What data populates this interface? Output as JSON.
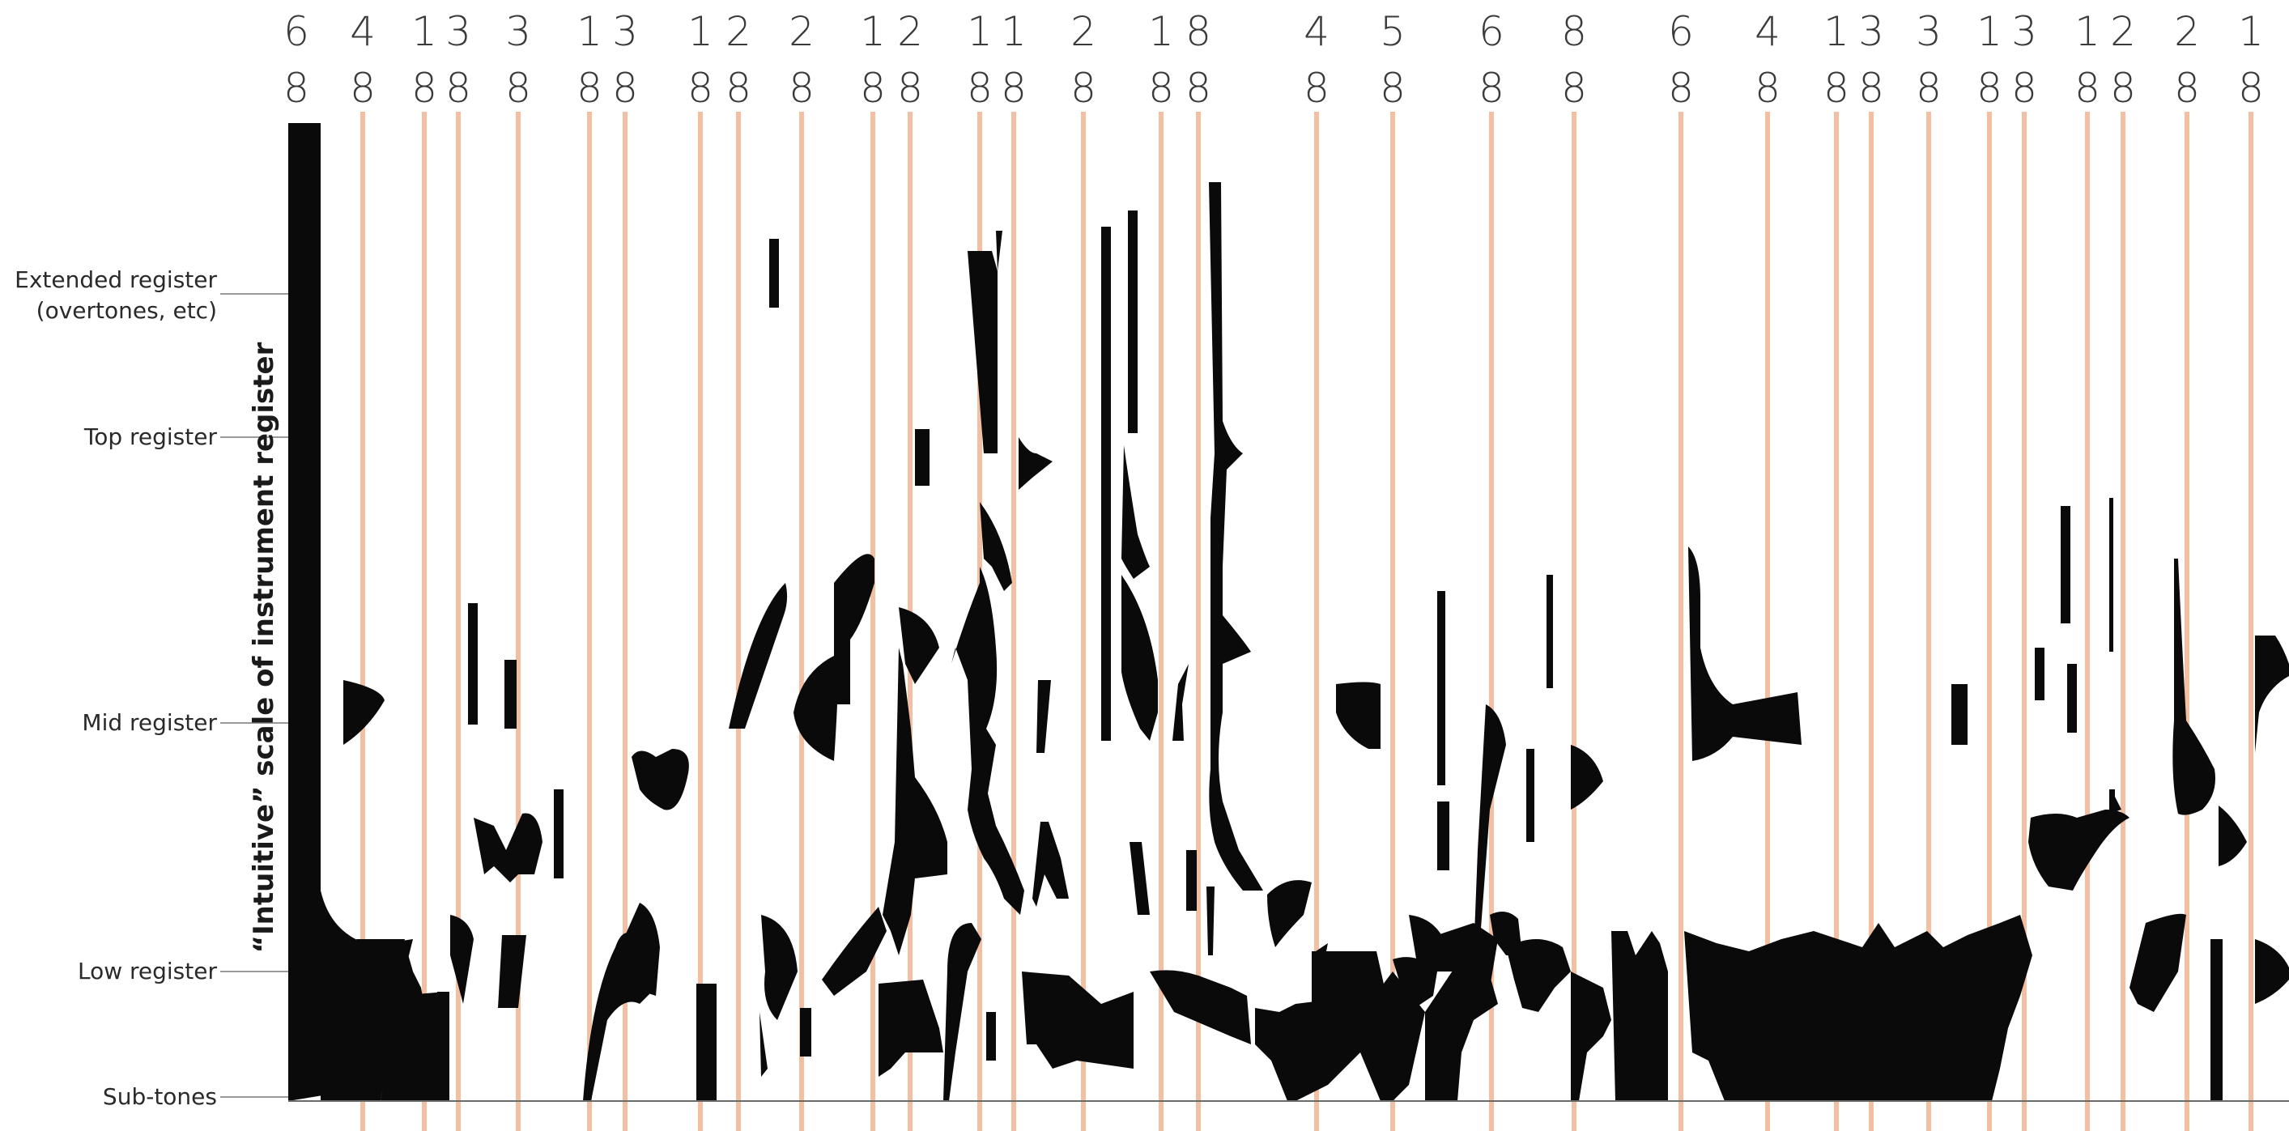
{
  "figure": {
    "axis_title": "“Intuitive” scale of instrument register",
    "registers": [
      {
        "label": "Extended register",
        "sub": "(overtones, etc)",
        "level": 1.0
      },
      {
        "label": "Top register",
        "level": 0.84
      },
      {
        "label": "Mid register",
        "level": 0.55
      },
      {
        "label": "Low register",
        "level": 0.13
      },
      {
        "label": "Sub-tones",
        "level": 0.0
      }
    ],
    "meters": [
      {
        "num": "6",
        "den": "8"
      },
      {
        "num": "4",
        "den": "8"
      },
      {
        "num": "1",
        "den": "8"
      },
      {
        "num": "3",
        "den": "8"
      },
      {
        "num": "3",
        "den": "8"
      },
      {
        "num": "1",
        "den": "8"
      },
      {
        "num": "3",
        "den": "8"
      },
      {
        "num": "1",
        "den": "8"
      },
      {
        "num": "2",
        "den": "8"
      },
      {
        "num": "2",
        "den": "8"
      },
      {
        "num": "1",
        "den": "8"
      },
      {
        "num": "2",
        "den": "8"
      },
      {
        "num": "1",
        "den": "8"
      },
      {
        "num": "1",
        "den": "8"
      },
      {
        "num": "2",
        "den": "8"
      },
      {
        "num": "1",
        "den": "8"
      },
      {
        "num": "8",
        "den": "8"
      },
      {
        "num": "4",
        "den": "8"
      },
      {
        "num": "5",
        "den": "8"
      },
      {
        "num": "6",
        "den": "8"
      },
      {
        "num": "8",
        "den": "8"
      },
      {
        "num": "6",
        "den": "8"
      },
      {
        "num": "4",
        "den": "8"
      },
      {
        "num": "1",
        "den": "8"
      },
      {
        "num": "3",
        "den": "8"
      },
      {
        "num": "3",
        "den": "8"
      },
      {
        "num": "1",
        "den": "8"
      },
      {
        "num": "3",
        "den": "8"
      },
      {
        "num": "1",
        "den": "8"
      },
      {
        "num": "2",
        "den": "8"
      },
      {
        "num": "2",
        "den": "8"
      },
      {
        "num": "1",
        "den": "8"
      }
    ],
    "colors": {
      "barline": "#f2bfa3",
      "ink": "#0a0a0a",
      "axis": "#9a9a9a"
    }
  }
}
